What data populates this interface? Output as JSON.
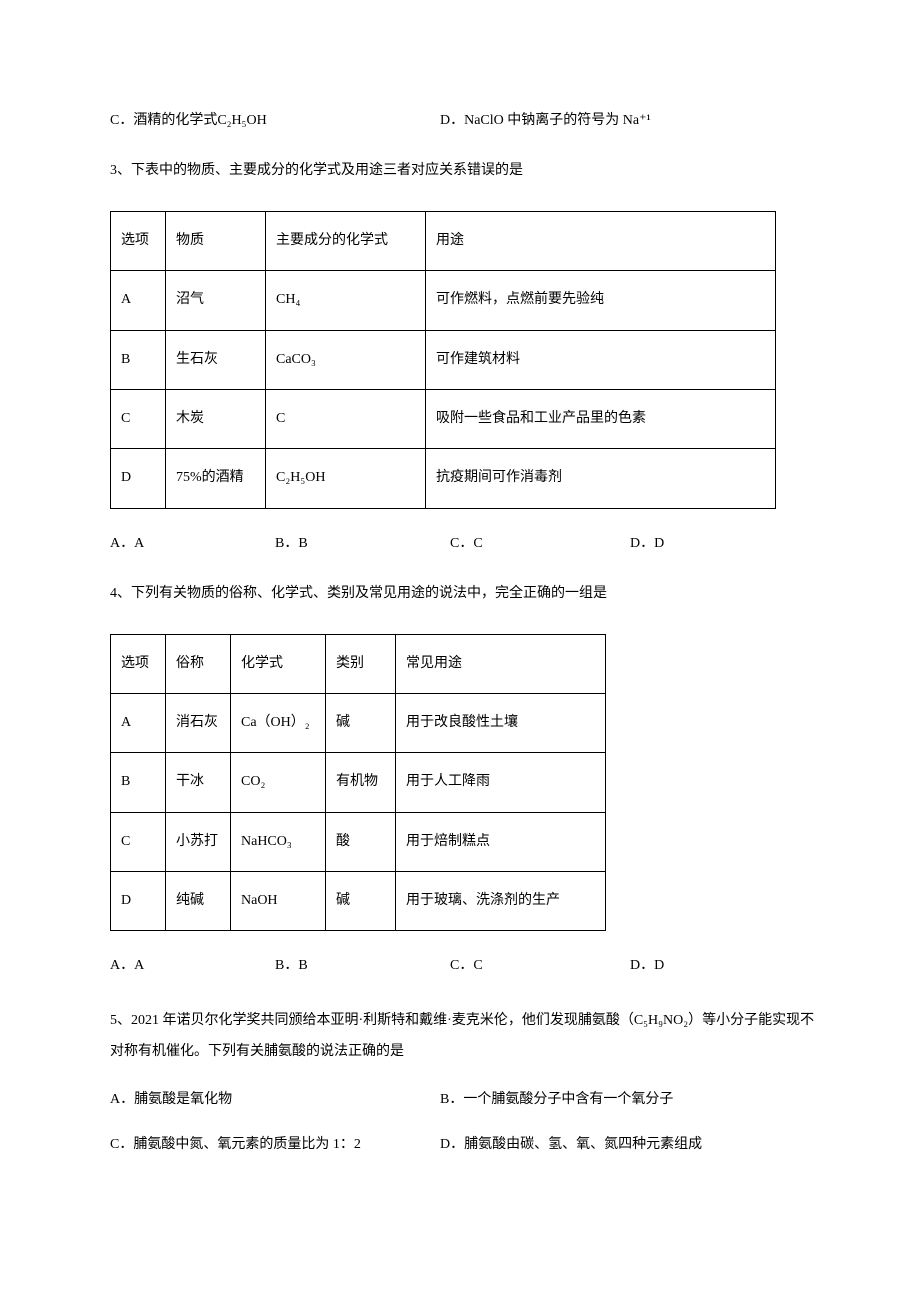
{
  "q2": {
    "optC": "C．酒精的化学式C₂H₅OH",
    "optD": "D．NaClO 中钠离子的符号为 Na⁺¹"
  },
  "q3": {
    "stem": "3、下表中的物质、主要成分的化学式及用途三者对应关系错误的是",
    "headers": [
      "选项",
      "物质",
      "主要成分的化学式",
      "用途"
    ],
    "rows": [
      [
        "A",
        "沼气",
        "CH₄",
        "可作燃料，点燃前要先验纯"
      ],
      [
        "B",
        "生石灰",
        "CaCO₃",
        "可作建筑材料"
      ],
      [
        "C",
        "木炭",
        "C",
        "吸附一些食品和工业产品里的色素"
      ],
      [
        "D",
        "75%的酒精",
        "C₂H₅OH",
        "抗疫期间可作消毒剂"
      ]
    ],
    "choices": [
      "A．A",
      "B．B",
      "C．C",
      "D．D"
    ]
  },
  "q4": {
    "stem": "4、下列有关物质的俗称、化学式、类别及常见用途的说法中，完全正确的一组是",
    "headers": [
      "选项",
      "俗称",
      "化学式",
      "类别",
      "常见用途"
    ],
    "rows": [
      [
        "A",
        "消石灰",
        "Ca（OH）₂",
        "碱",
        "用于改良酸性土壤"
      ],
      [
        "B",
        "干冰",
        "CO₂",
        "有机物",
        "用于人工降雨"
      ],
      [
        "C",
        "小苏打",
        "NaHCO₃",
        "酸",
        "用于焙制糕点"
      ],
      [
        "D",
        "纯碱",
        "NaOH",
        "碱",
        "用于玻璃、洗涤剂的生产"
      ]
    ],
    "choices": [
      "A．A",
      "B．B",
      "C．C",
      "D．D"
    ]
  },
  "q5": {
    "stem": "5、2021 年诺贝尔化学奖共同颁给本亚明·利斯特和戴维·麦克米伦，他们发现脯氨酸（C₅H₉NO₂）等小分子能实现不对称有机催化。下列有关脯氨酸的说法正确的是",
    "optA": "A．脯氨酸是氧化物",
    "optB": "B．一个脯氨酸分子中含有一个氧分子",
    "optC": "C．脯氨酸中氮、氧元素的质量比为 1：2",
    "optD": "D．脯氨酸由碳、氢、氧、氮四种元素组成"
  }
}
